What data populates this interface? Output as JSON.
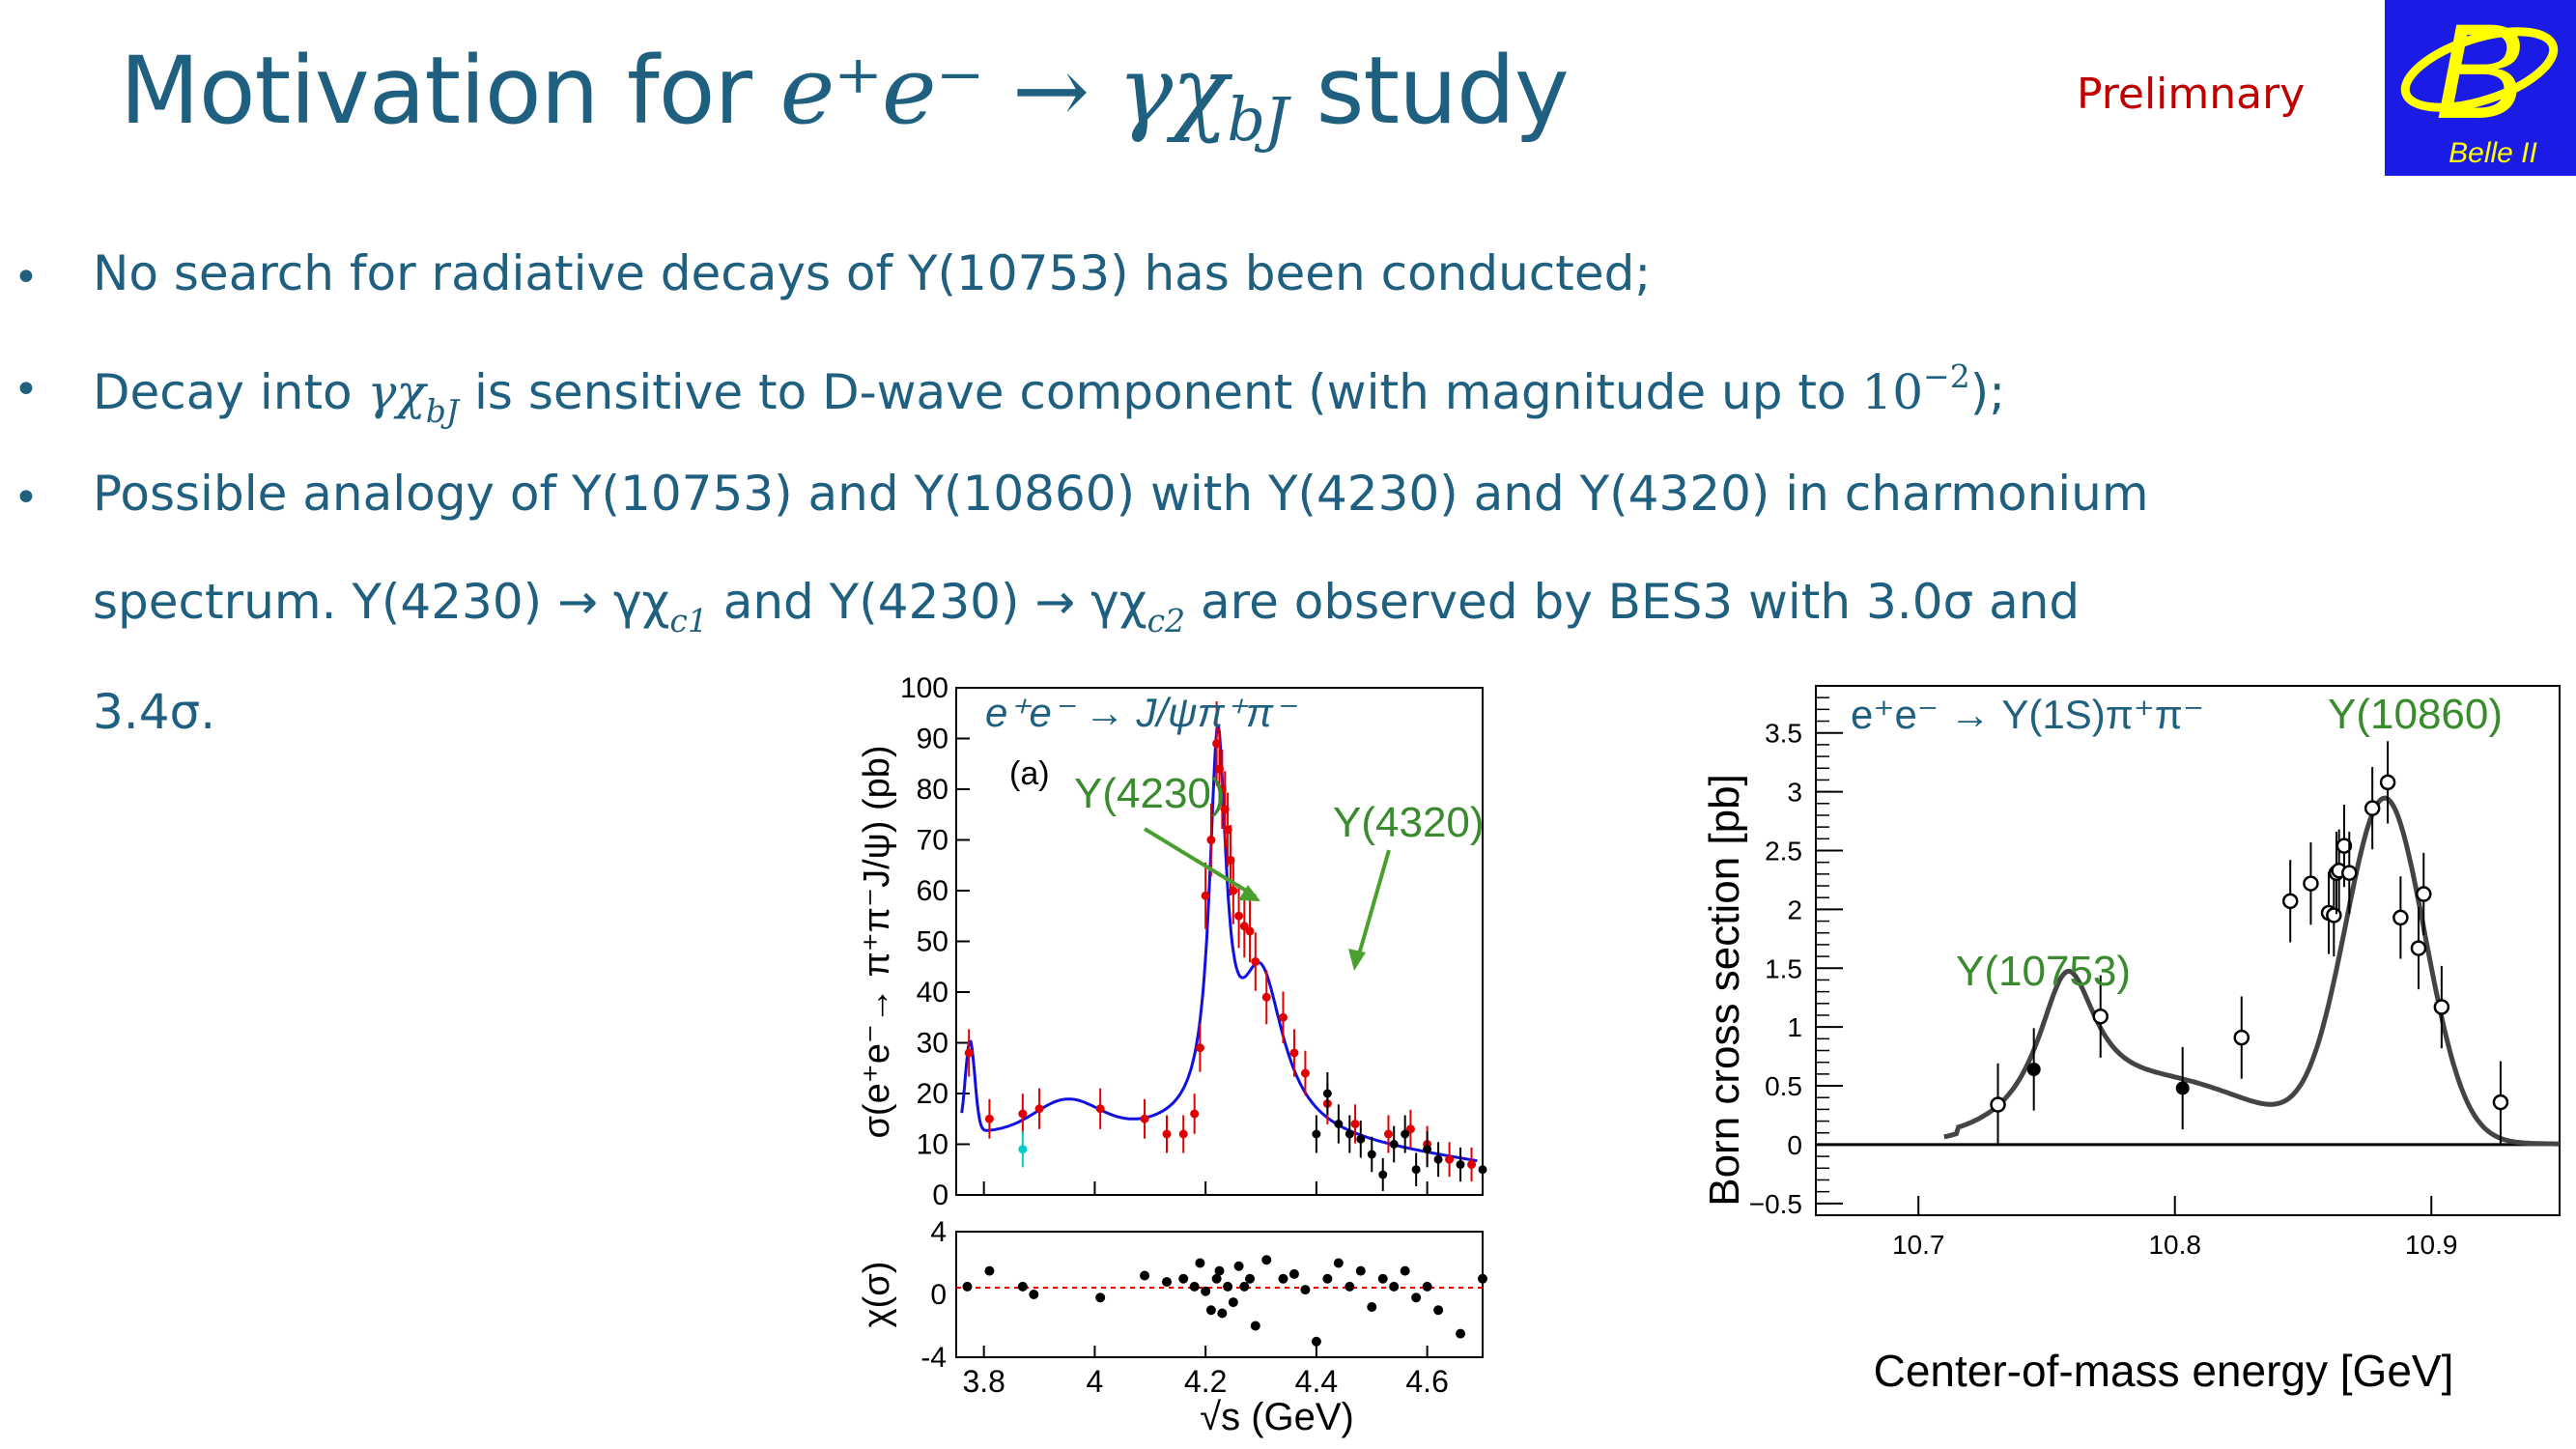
{
  "header": {
    "title_prefix": "Motivation for ",
    "title_math": "e⁺e⁻ → γχ",
    "title_sub": "bJ",
    "title_suffix": " study",
    "prelim": "Prelimnary",
    "logo_letter": "B",
    "logo_text": "Belle II"
  },
  "bullets": {
    "b1": "No search for radiative decays of Υ(10753) has been conducted;",
    "b2_pre": "Decay into ",
    "b2_math": "γχ",
    "b2_sub": "bJ",
    "b2_post": " is sensitive to D-wave component (with magnitude up to ",
    "b2_pow": "10",
    "b2_exp": "−2",
    "b2_end": ");",
    "b3_l1": "Possible analogy of Υ(10753) and Υ(10860) with Y(4230) and Y(4320) in charmonium",
    "b3_l2_a": "spectrum. Y(4230) → γχ",
    "b3_l2_sub1": "c1",
    "b3_l2_b": " and Y(4230) → γχ",
    "b3_l2_sub2": "c2",
    "b3_l2_c": " are observed by BES3 with 3.0σ and",
    "b3_l3": "3.4σ."
  },
  "chart_data": [
    {
      "type": "scatter",
      "panel_label": "(a)",
      "process": "e⁺e⁻ → J/ψπ⁺π⁻",
      "ylabel": "σ(e⁺e⁻→ π⁺π⁻J/ψ) (pb)",
      "xlabel": "√s (GeV)",
      "xlim": [
        3.75,
        4.7
      ],
      "ylim": [
        0,
        100
      ],
      "yticks": [
        "0",
        "10",
        "20",
        "30",
        "40",
        "50",
        "60",
        "70",
        "80",
        "90",
        "100"
      ],
      "xticks": [
        "3.8",
        "4",
        "4.2",
        "4.4",
        "4.6"
      ],
      "annotations": [
        "Υ(4230)",
        "Υ(4320)"
      ],
      "series": [
        {
          "color": "#e00000",
          "x": [
            3.773,
            3.81,
            3.87,
            3.9,
            4.01,
            4.09,
            4.13,
            4.16,
            4.18,
            4.19,
            4.2,
            4.21,
            4.22,
            4.225,
            4.23,
            4.235,
            4.24,
            4.245,
            4.25,
            4.26,
            4.27,
            4.28,
            4.29,
            4.31,
            4.34,
            4.36,
            4.38,
            4.42,
            4.47,
            4.53,
            4.57,
            4.6,
            4.64,
            4.68
          ],
          "y": [
            28,
            15,
            16,
            17,
            17,
            15,
            12,
            12,
            16,
            29,
            59,
            70,
            89,
            84,
            80,
            76,
            72,
            66,
            60,
            55,
            53,
            52,
            46,
            39,
            35,
            28,
            24,
            18,
            14,
            12,
            13,
            10,
            7,
            6
          ]
        },
        {
          "color": "#000000",
          "x": [
            4.4,
            4.42,
            4.44,
            4.46,
            4.48,
            4.5,
            4.52,
            4.54,
            4.56,
            4.58,
            4.6,
            4.62,
            4.66,
            4.7
          ],
          "y": [
            12,
            20,
            14,
            12,
            11,
            8,
            4,
            10,
            12,
            5,
            9,
            7,
            6,
            5
          ]
        },
        {
          "color": "#00cccc",
          "x": [
            3.87
          ],
          "y": [
            9
          ]
        }
      ],
      "fit_color": "#1010e0",
      "residuals": {
        "ylabel": "χ(σ)",
        "ylim": [
          -4,
          4
        ],
        "yticks": [
          "4",
          "0",
          "-4"
        ],
        "x": [
          3.77,
          3.81,
          3.87,
          3.89,
          4.01,
          4.09,
          4.13,
          4.16,
          4.18,
          4.19,
          4.2,
          4.21,
          4.22,
          4.225,
          4.23,
          4.24,
          4.25,
          4.26,
          4.27,
          4.28,
          4.29,
          4.31,
          4.34,
          4.36,
          4.38,
          4.4,
          4.42,
          4.44,
          4.46,
          4.48,
          4.5,
          4.52,
          4.54,
          4.56,
          4.58,
          4.6,
          4.62,
          4.66,
          4.7
        ],
        "y": [
          0.5,
          1.5,
          0.5,
          0,
          -0.2,
          1.2,
          0.8,
          1,
          0.5,
          2,
          0.2,
          -1,
          1,
          1.5,
          -1.2,
          0.5,
          -0.5,
          1.8,
          0.5,
          1,
          -2,
          2.2,
          1,
          1.3,
          0.3,
          -3,
          1,
          2,
          0.5,
          1.5,
          -0.8,
          1,
          0.5,
          1.5,
          -0.2,
          0.5,
          -1,
          -2.5,
          1
        ]
      }
    },
    {
      "type": "scatter",
      "process": "e⁺e⁻ → Υ(1S)π⁺π⁻",
      "ylabel": "Born cross section [pb]",
      "xlabel": "Center-of-mass energy [GeV]",
      "xlim": [
        10.66,
        10.95
      ],
      "ylim": [
        -0.6,
        3.9
      ],
      "yticks": [
        "−0.5",
        "0",
        "0.5",
        "1",
        "1.5",
        "2",
        "2.5",
        "3",
        "3.5"
      ],
      "xticks": [
        "10.7",
        "10.8",
        "10.9"
      ],
      "annotations": [
        "Υ(10860)",
        "Υ(10753)"
      ],
      "open_points": {
        "x": [
          10.731,
          10.771,
          10.826,
          10.845,
          10.853,
          10.86,
          10.862,
          10.863,
          10.864,
          10.866,
          10.868,
          10.877,
          10.883,
          10.888,
          10.895,
          10.897,
          10.904,
          10.927
        ],
        "y": [
          0.34,
          1.09,
          0.91,
          2.07,
          2.22,
          1.97,
          1.95,
          2.31,
          2.33,
          2.54,
          2.31,
          2.86,
          3.08,
          1.93,
          1.67,
          2.13,
          1.17,
          0.36
        ]
      },
      "filled_points": {
        "x": [
          10.745,
          10.803
        ],
        "y": [
          0.64,
          0.48
        ]
      },
      "fit_color": "#444444"
    }
  ]
}
